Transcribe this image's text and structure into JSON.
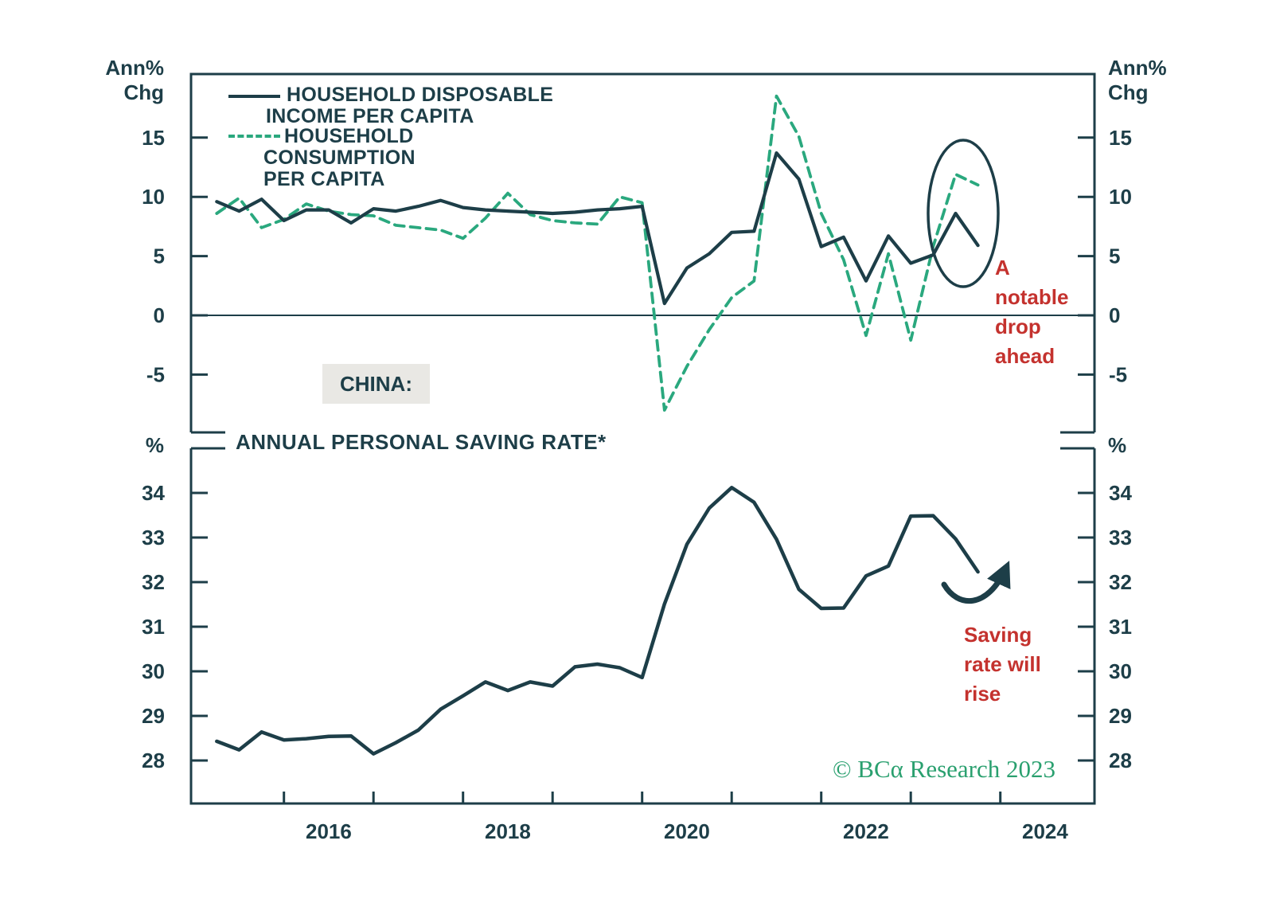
{
  "title_labels": {
    "axis_top_left": "Ann%\nChg",
    "axis_top_right": "Ann%\nChg",
    "axis_bottom_left": "%",
    "axis_bottom_right": "%",
    "china_tag": "CHINA:",
    "bottom_panel_title": "ANNUAL PERSONAL SAVING RATE*",
    "credit": "© BCα Research 2023"
  },
  "legend": {
    "income": [
      "HOUSEHOLD DISPOSABLE",
      "INCOME PER CAPITA"
    ],
    "consumption": [
      "HOUSEHOLD",
      "CONSUMPTION",
      "PER CAPITA"
    ]
  },
  "annotations": {
    "drop_note": "A\nnotable\ndrop\nahead",
    "rise_note": "Saving\nrate will\nrise"
  },
  "colors": {
    "dark_teal": "#1d3e48",
    "green_dashed": "#2aa87e",
    "red_annotation": "#c4322e",
    "credit_green": "#2aa06f",
    "china_box_bg": "#e9e8e4"
  },
  "x_axis": {
    "xlim": [
      2015.0,
      2025.0
    ],
    "ticks": [
      2016,
      2017,
      2018,
      2019,
      2020,
      2021,
      2022,
      2023,
      2024
    ],
    "tick_labels": [
      "2016",
      "2018",
      "2020",
      "2022",
      "2024"
    ],
    "tick_label_positions": [
      2016.5,
      2018.5,
      2020.5,
      2022.5,
      2024.5
    ]
  },
  "chart_data": [
    {
      "type": "line",
      "panel": "top",
      "title": "CHINA: household income and consumption growth",
      "ylabel_left": "Ann% Chg",
      "ylabel_right": "Ann% Chg",
      "ylim": [
        -9.9,
        20.4
      ],
      "yticks": [
        15,
        10,
        5,
        0,
        -5
      ],
      "zero_line": true,
      "legend_position": "top-left",
      "x": [
        2015.25,
        2015.5,
        2015.75,
        2016.0,
        2016.25,
        2016.5,
        2016.75,
        2017.0,
        2017.25,
        2017.5,
        2017.75,
        2018.0,
        2018.25,
        2018.5,
        2018.75,
        2019.0,
        2019.25,
        2019.5,
        2019.75,
        2020.0,
        2020.25,
        2020.5,
        2020.75,
        2021.0,
        2021.25,
        2021.5,
        2021.75,
        2022.0,
        2022.25,
        2022.5,
        2022.75,
        2023.0,
        2023.25,
        2023.5,
        2023.75
      ],
      "series": [
        {
          "name": "HOUSEHOLD DISPOSABLE INCOME PER CAPITA",
          "style": "solid",
          "color": "#1d3e48",
          "values": [
            9.6,
            8.8,
            9.8,
            8.0,
            8.9,
            8.9,
            7.8,
            9.0,
            8.8,
            9.2,
            9.7,
            9.1,
            8.9,
            8.8,
            8.7,
            8.6,
            8.7,
            8.9,
            9.0,
            9.2,
            1.0,
            4.0,
            5.2,
            7.0,
            7.1,
            13.7,
            11.5,
            5.8,
            6.6,
            2.9,
            6.7,
            4.4,
            5.1,
            8.6,
            5.9
          ]
        },
        {
          "name": "HOUSEHOLD CONSUMPTION PER CAPITA",
          "style": "dashed",
          "color": "#2aa87e",
          "values": [
            8.6,
            9.9,
            7.4,
            8.1,
            9.4,
            8.8,
            8.5,
            8.4,
            7.6,
            7.4,
            7.2,
            6.5,
            8.2,
            10.3,
            8.5,
            8.0,
            7.8,
            7.7,
            10.0,
            9.5,
            -8.0,
            -4.3,
            -1.2,
            1.5,
            2.9,
            18.5,
            15.1,
            8.6,
            4.7,
            -1.7,
            5.2,
            -2.1,
            5.8,
            11.9,
            11.0
          ]
        }
      ],
      "annotation": "A notable drop ahead",
      "annotation_shape": "ellipse around 2023 data"
    },
    {
      "type": "line",
      "panel": "bottom",
      "title": "ANNUAL PERSONAL SAVING RATE*",
      "ylabel_left": "%",
      "ylabel_right": "%",
      "ylim": [
        27.0,
        35.0
      ],
      "yticks": [
        34,
        33,
        32,
        31,
        30,
        29,
        28
      ],
      "x": [
        2015.25,
        2015.5,
        2015.75,
        2016.0,
        2016.25,
        2016.5,
        2016.75,
        2017.0,
        2017.25,
        2017.5,
        2017.75,
        2018.0,
        2018.25,
        2018.5,
        2018.75,
        2019.0,
        2019.25,
        2019.5,
        2019.75,
        2020.0,
        2020.25,
        2020.5,
        2020.75,
        2021.0,
        2021.25,
        2021.5,
        2021.75,
        2022.0,
        2022.25,
        2022.5,
        2022.75,
        2023.0,
        2023.25,
        2023.5,
        2023.75
      ],
      "series": [
        {
          "name": "ANNUAL PERSONAL SAVING RATE",
          "style": "solid",
          "color": "#1d3e48",
          "values": [
            28.43,
            28.24,
            28.64,
            28.46,
            28.49,
            28.54,
            28.55,
            28.15,
            28.4,
            28.68,
            29.15,
            29.45,
            29.76,
            29.57,
            29.76,
            29.67,
            30.1,
            30.16,
            30.08,
            29.86,
            31.51,
            32.85,
            33.66,
            34.12,
            33.79,
            32.96,
            31.84,
            31.41,
            31.42,
            32.14,
            32.36,
            33.48,
            33.49,
            32.97,
            32.23
          ]
        }
      ],
      "annotation": "Saving rate will rise",
      "annotation_shape": "curved arrow pointing up-right"
    }
  ]
}
